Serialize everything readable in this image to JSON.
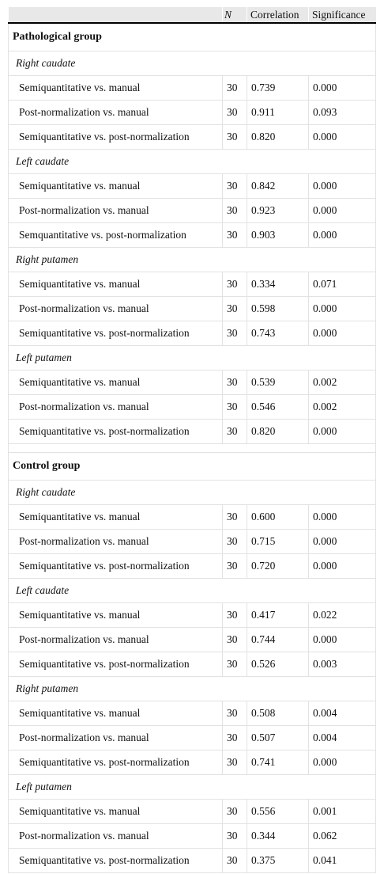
{
  "headers": [
    "",
    "N",
    "Correlation",
    "Significance"
  ],
  "groups": [
    {
      "title": "Pathological group",
      "regions": [
        {
          "name": "Right caudate",
          "rows": [
            [
              "Semiquantitative vs. manual",
              "30",
              "0.739",
              "0.000"
            ],
            [
              "Post-normalization vs. manual",
              "30",
              "0.911",
              "0.093"
            ],
            [
              "Semiquantitative vs. post-normalization",
              "30",
              "0.820",
              "0.000"
            ]
          ]
        },
        {
          "name": "Left caudate",
          "rows": [
            [
              "Semiquantitative vs. manual",
              "30",
              "0.842",
              "0.000"
            ],
            [
              "Post-normalization vs. manual",
              "30",
              "0.923",
              "0.000"
            ],
            [
              "Semquantitative vs. post-normalization",
              "30",
              "0.903",
              "0.000"
            ]
          ]
        },
        {
          "name": "Right putamen",
          "rows": [
            [
              "Semiquantitative vs. manual",
              "30",
              "0.334",
              "0.071"
            ],
            [
              "Post-normalization vs. manual",
              "30",
              "0.598",
              "0.000"
            ],
            [
              "Semiquantitative vs. post-normalization",
              "30",
              "0.743",
              "0.000"
            ]
          ]
        },
        {
          "name": "Left putamen",
          "rows": [
            [
              "Semiquantitative vs. manual",
              "30",
              "0.539",
              "0.002"
            ],
            [
              "Post-normalization vs. manual",
              "30",
              "0.546",
              "0.002"
            ],
            [
              "Semiquantitative vs. post-normalization",
              "30",
              "0.820",
              "0.000"
            ]
          ]
        }
      ]
    },
    {
      "title": "Control group",
      "regions": [
        {
          "name": "Right caudate",
          "rows": [
            [
              "Semiquantitative vs. manual",
              "30",
              "0.600",
              "0.000"
            ],
            [
              "Post-normalization vs. manual",
              "30",
              "0.715",
              "0.000"
            ],
            [
              "Semiquantitative vs. post-normalization",
              "30",
              "0.720",
              "0.000"
            ]
          ]
        },
        {
          "name": "Left caudate",
          "rows": [
            [
              "Semiquantitative vs. manual",
              "30",
              "0.417",
              "0.022"
            ],
            [
              "Post-normalization vs. manual",
              "30",
              "0.744",
              "0.000"
            ],
            [
              "Semiquantitative vs. post-normalization",
              "30",
              "0.526",
              "0.003"
            ]
          ]
        },
        {
          "name": "Right putamen",
          "rows": [
            [
              "Semiquantitative vs. manual",
              "30",
              "0.508",
              "0.004"
            ],
            [
              "Post-normalization vs. manual",
              "30",
              "0.507",
              "0.004"
            ],
            [
              "Semiquantitative vs. post-normalization",
              "30",
              "0.741",
              "0.000"
            ]
          ]
        },
        {
          "name": "Left putamen",
          "rows": [
            [
              "Semiquantitative vs. manual",
              "30",
              "0.556",
              "0.001"
            ],
            [
              "Post-normalization vs. manual",
              "30",
              "0.344",
              "0.062"
            ],
            [
              "Semiquantitative vs. post-normalization",
              "30",
              "0.375",
              "0.041"
            ]
          ]
        }
      ]
    }
  ]
}
